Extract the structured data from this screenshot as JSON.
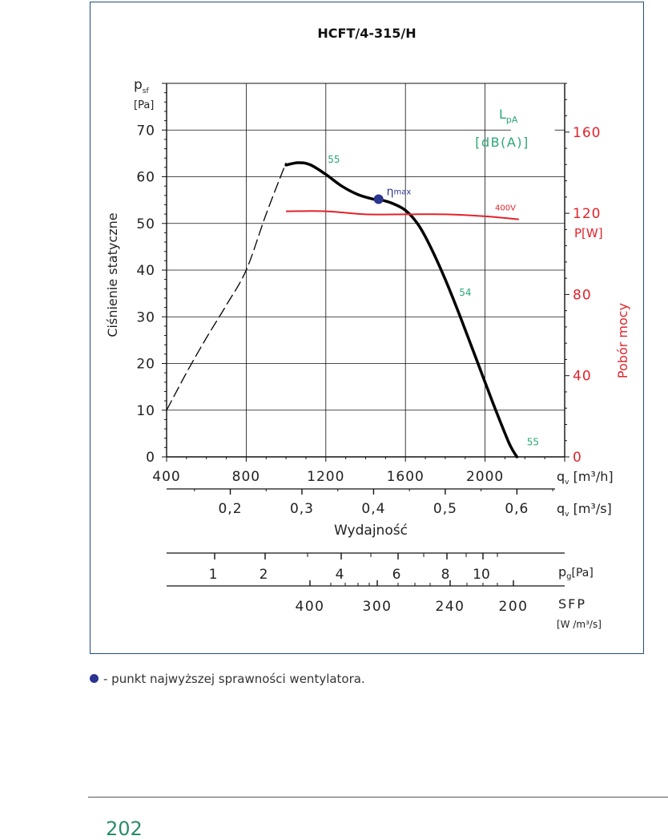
{
  "note": {
    "text": "- punkt najwyższej sprawności wentylatora."
  },
  "page_number": "202",
  "chart_data": {
    "type": "line",
    "title": "HCFT/4-315/H",
    "ylabel_left": "Ciśnienie statyczne",
    "ylabel_left_symbol": "p",
    "ylabel_left_symbol_sub": "sf",
    "ylabel_left_unit": "[Pa]",
    "ylabel_right": "Pobór mocy",
    "ylabel_right_unit": "P[W]",
    "xlabel": "Wydajność",
    "x_axis_unit_m3h": "q",
    "x_axis_unit_m3h_sub": "v",
    "x_axis_unit_m3h_rest": " [m³/h]",
    "x_axis_unit_m3s": "q",
    "x_axis_unit_m3s_sub": "v",
    "x_axis_unit_m3s_rest": " [m³/s]",
    "pg_axis_label": "p",
    "pg_axis_label_sub": "g",
    "pg_axis_label_rest": "[Pa]",
    "sfp_axis_label": "SFP",
    "sfp_axis_unit": "[W /m³/s]",
    "lpa_label": "L",
    "lpa_label_sub": "pA",
    "lpa_unit": "[dB(A)]",
    "eta_label": "η",
    "eta_label_sup": "max",
    "power_series_label": "400V",
    "xlim": [
      400,
      2400
    ],
    "ylim": [
      0,
      80
    ],
    "power_lim": [
      0,
      184
    ],
    "x_ticks": [
      400,
      800,
      1200,
      1600,
      2000
    ],
    "x_tick_labels": [
      "400",
      "800",
      "1200",
      "1600",
      "2000"
    ],
    "y_ticks": [
      0,
      10,
      20,
      30,
      40,
      50,
      60,
      70
    ],
    "y_tick_labels": [
      "0",
      "10",
      "20",
      "30",
      "40",
      "50",
      "60",
      "70"
    ],
    "power_ticks": [
      0,
      40,
      80,
      120,
      160
    ],
    "power_tick_labels": [
      "0",
      "40",
      "80",
      "120",
      "160"
    ],
    "m3s_ticks": [
      0.2,
      0.3,
      0.4,
      0.5,
      0.6
    ],
    "m3s_tick_labels": [
      "0,2",
      "0,3",
      "0,4",
      "0,5",
      "0,6"
    ],
    "pg_ticks": [
      1,
      2,
      4,
      6,
      8,
      10
    ],
    "pg_tick_labels": [
      "1",
      "2",
      "4",
      "6",
      "8",
      "10"
    ],
    "sfp_ticks": [
      400,
      300,
      240,
      200
    ],
    "sfp_tick_labels": [
      "400",
      "300",
      "240",
      "200"
    ],
    "pressure_dashed": {
      "x": [
        400,
        500,
        600,
        700,
        800,
        900,
        1000
      ],
      "y": [
        10,
        18,
        25.5,
        32.5,
        40,
        52,
        63
      ]
    },
    "pressure_curve": {
      "x": [
        1000,
        1060,
        1120,
        1200,
        1280,
        1360,
        1440,
        1480,
        1540,
        1600,
        1660,
        1720,
        1800,
        1880,
        1960,
        2040,
        2120,
        2160
      ],
      "y": [
        62.5,
        63,
        62.6,
        60.5,
        58,
        56.2,
        55.2,
        55,
        54.2,
        52.8,
        50,
        45.5,
        38,
        29.5,
        20.5,
        11.5,
        3,
        0
      ]
    },
    "power_curve": {
      "x": [
        1000,
        1200,
        1400,
        1600,
        1800,
        2000,
        2170
      ],
      "y": [
        121,
        121,
        119.5,
        119.5,
        119.5,
        118.5,
        117
      ]
    },
    "eta_point": {
      "x": 1465,
      "y": 55.2
    },
    "lpa_points": [
      {
        "x": 1210,
        "y": 63,
        "label": "55"
      },
      {
        "x": 1870,
        "y": 34.5,
        "label": "54"
      },
      {
        "x": 2210,
        "y": 2.5,
        "label": "55"
      }
    ],
    "colors": {
      "axis": "#111111",
      "grid": "#111111",
      "pressure": "#000000",
      "power": "#e2222a",
      "lpa": "#2aa874",
      "eta": "#2a3590",
      "frame": "#1f4f78"
    }
  }
}
